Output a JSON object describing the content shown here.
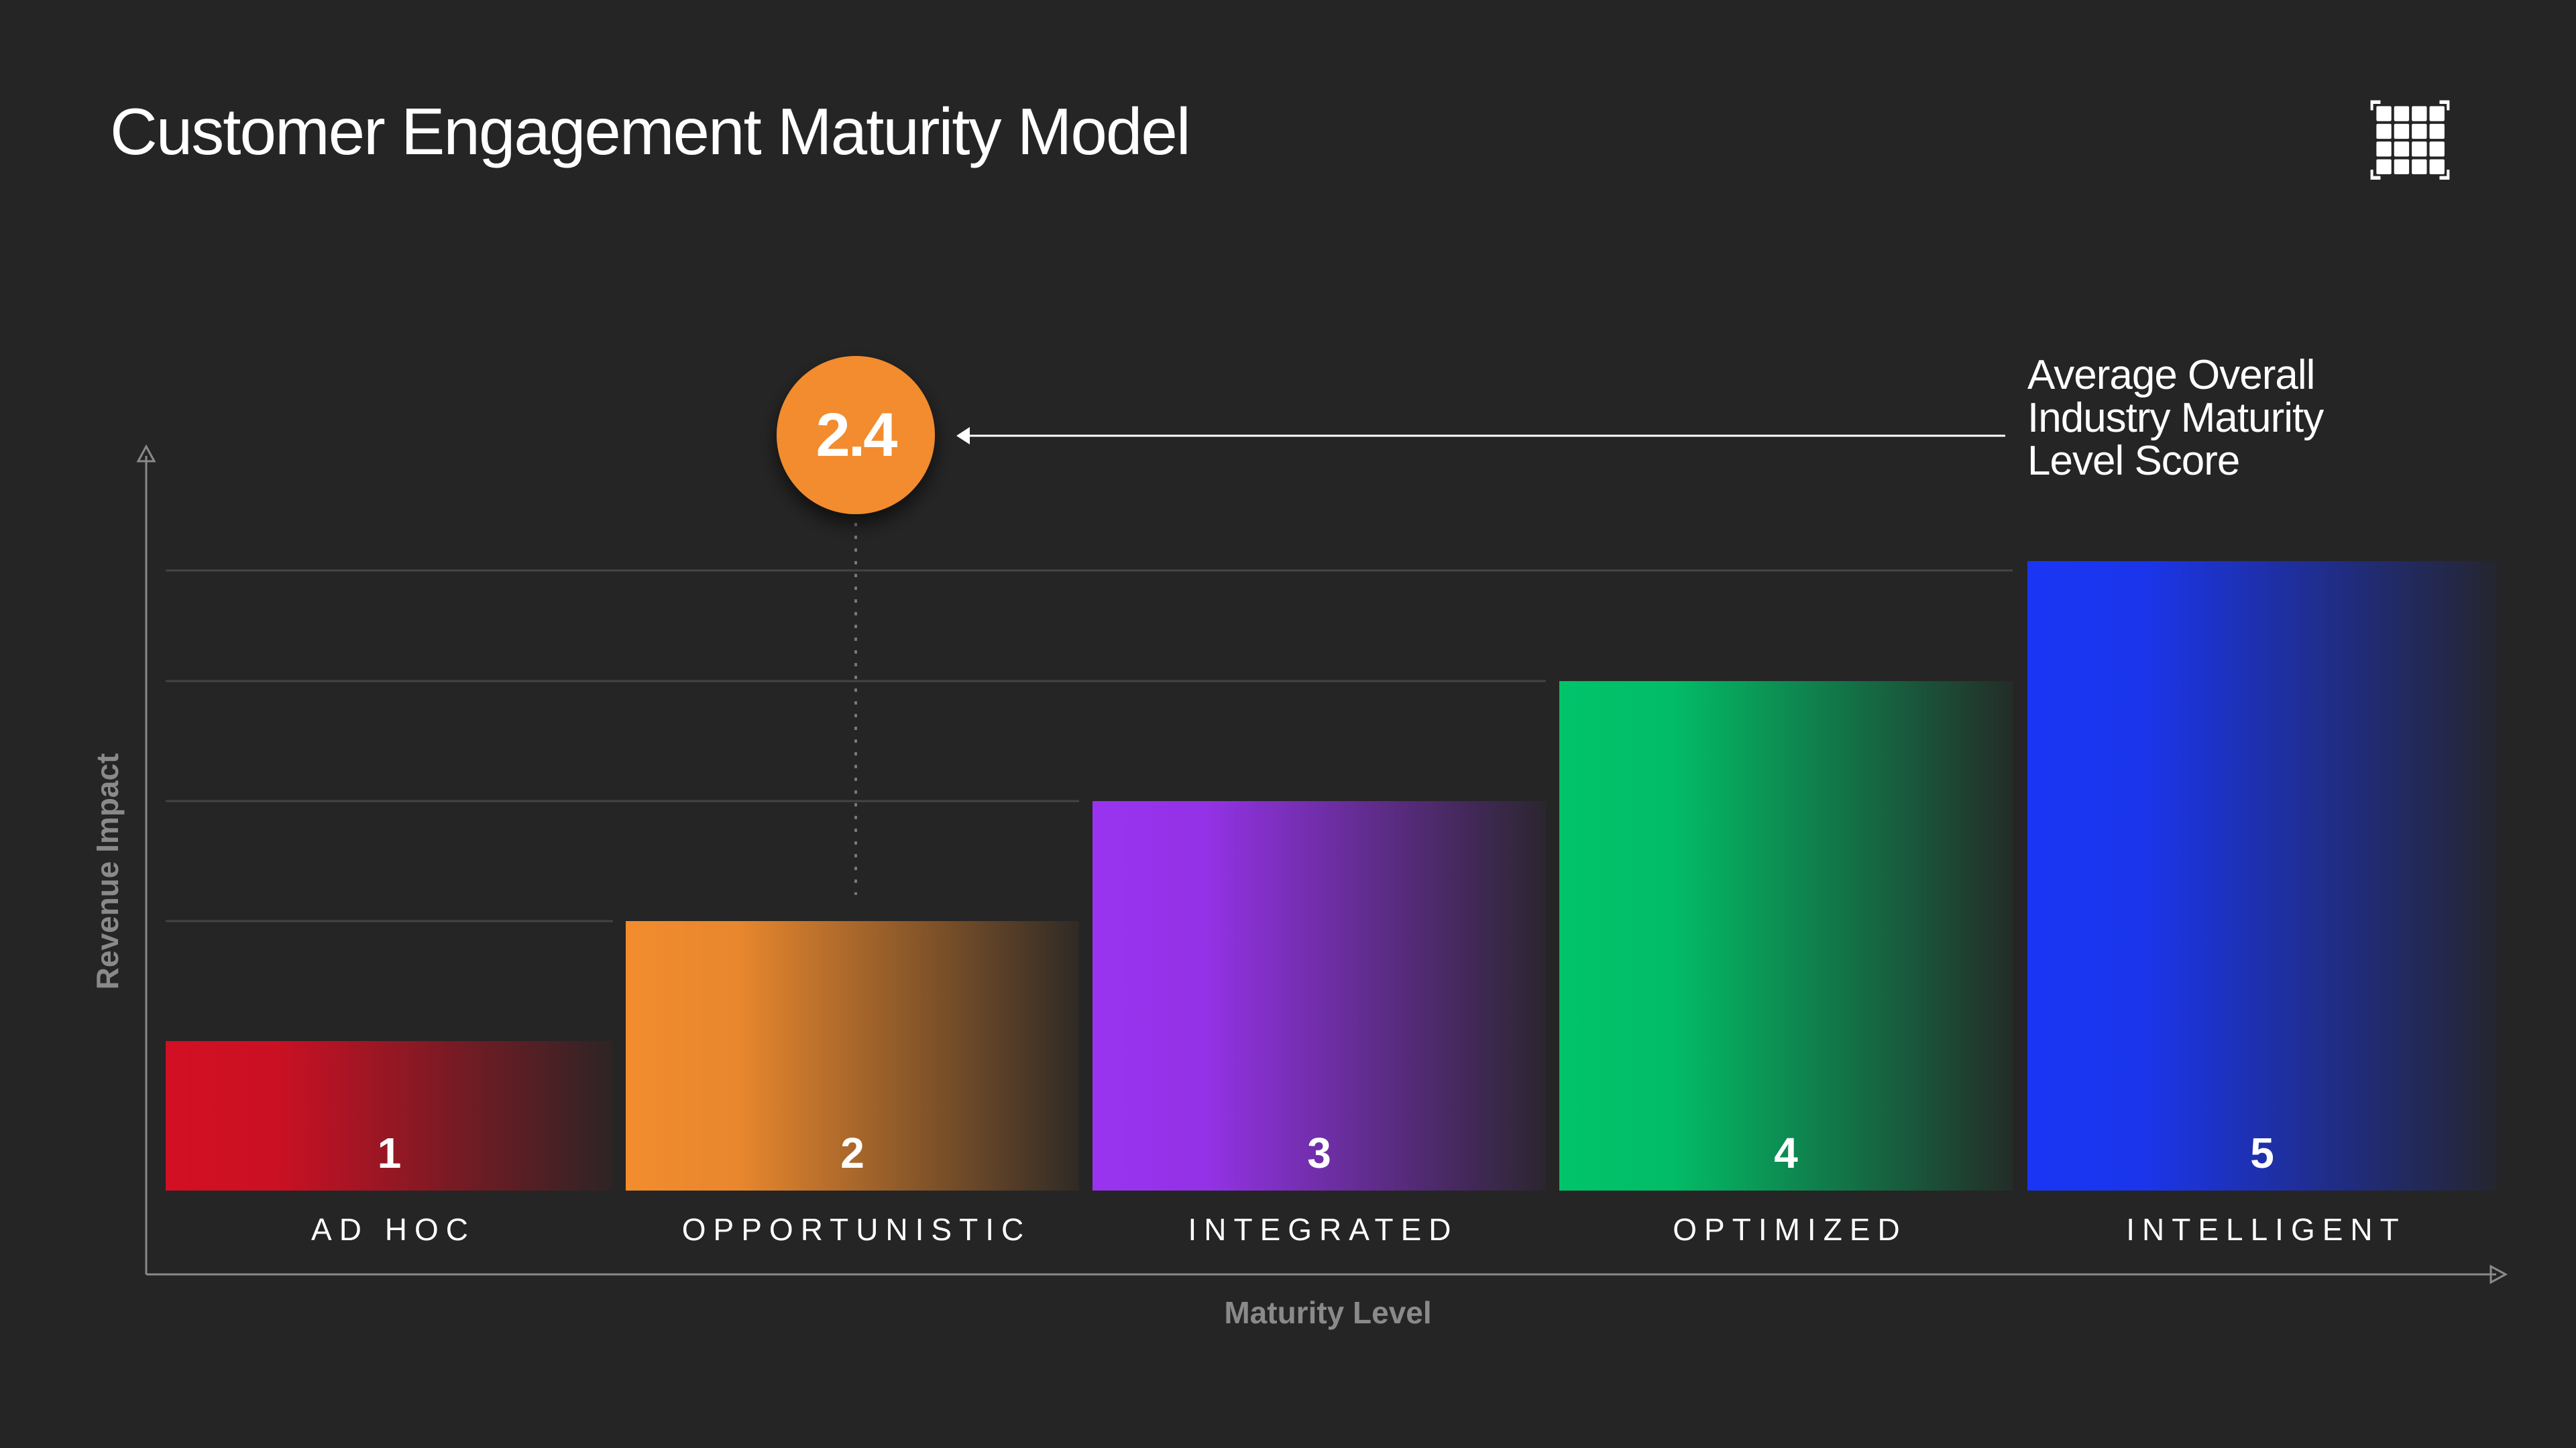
{
  "title": "Customer Engagement Maturity Model",
  "logo_icon": "grid-icon",
  "annotation": {
    "score": "2.4",
    "lines": [
      "Average Overall",
      "Industry Maturity",
      "Level Score"
    ],
    "marker_color": "#f28c2e"
  },
  "chart_data": {
    "type": "bar",
    "title": "",
    "xlabel": "Maturity Level",
    "ylabel": "Revenue Impact",
    "categories": [
      "AD HOC",
      "OPPORTUNISTIC",
      "INTEGRATED",
      "OPTIMIZED",
      "INTELLIGENT"
    ],
    "values": [
      1,
      2,
      3,
      4,
      5
    ],
    "value_labels": [
      "1",
      "2",
      "3",
      "4",
      "5"
    ],
    "colors": [
      "#d30f23",
      "#f28c2e",
      "#9933f0",
      "#00c46a",
      "#1a36f5"
    ],
    "highlight": {
      "value": 2.4,
      "category": "OPPORTUNISTIC"
    },
    "grid": true,
    "legend": "none"
  }
}
